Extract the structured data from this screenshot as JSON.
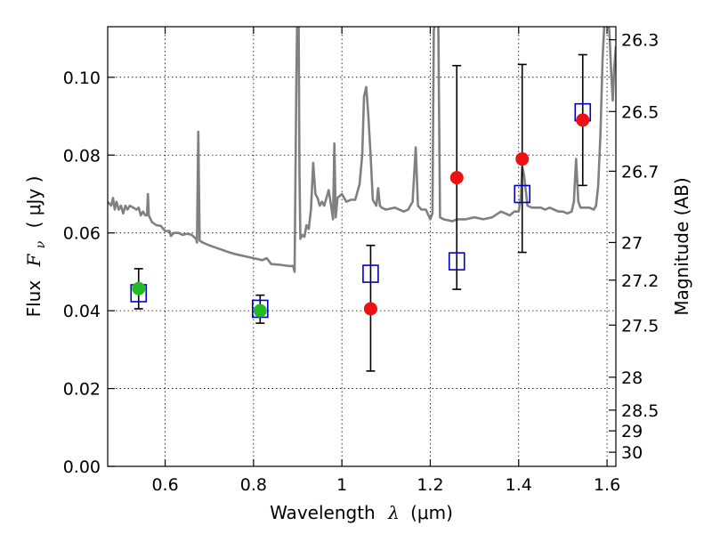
{
  "chart_data": {
    "type": "scatter",
    "xlabel_prefix": "Wavelength",
    "xlabel_symbol": "λ",
    "xlabel_unit": "(μm)",
    "ylabel_prefix": "Flux",
    "ylabel_symbol": "F",
    "ylabel_subscript": "ν",
    "ylabel_unit": "( μJy )",
    "y2label": "Magnitude (AB)",
    "xlim": [
      0.47,
      1.62
    ],
    "ylim": [
      0.0,
      0.113
    ],
    "xticks": [
      0.6,
      0.8,
      1.0,
      1.2,
      1.4,
      1.6
    ],
    "xtick_labels": [
      "0.6",
      "0.8",
      "1",
      "1.2",
      "1.4",
      "1.6"
    ],
    "yticks": [
      0.0,
      0.02,
      0.04,
      0.06,
      0.08,
      0.1
    ],
    "ytick_labels": [
      "0.00",
      "0.02",
      "0.04",
      "0.06",
      "0.08",
      "0.10"
    ],
    "y2ticks": [
      {
        "value": 26.3,
        "label": "26.3"
      },
      {
        "value": 26.5,
        "label": "26.5"
      },
      {
        "value": 26.7,
        "label": "26.7"
      },
      {
        "value": 27.0,
        "label": "27"
      },
      {
        "value": 27.2,
        "label": "27.2"
      },
      {
        "value": 27.5,
        "label": "27.5"
      },
      {
        "value": 28.0,
        "label": "28"
      },
      {
        "value": 28.5,
        "label": "28.5"
      },
      {
        "value": 29.0,
        "label": "29"
      },
      {
        "value": 30.0,
        "label": "30"
      }
    ],
    "magnitude_zero_point": 23.9,
    "grid": true,
    "colors": {
      "template": "#808080",
      "model_box": "#0000cc",
      "observed_green": "#22bb22",
      "observed_red": "#ee1111",
      "errorbar": "#000000"
    },
    "template_spectrum": [
      [
        0.47,
        0.068
      ],
      [
        0.478,
        0.067
      ],
      [
        0.482,
        0.069
      ],
      [
        0.486,
        0.066
      ],
      [
        0.49,
        0.068
      ],
      [
        0.495,
        0.066
      ],
      [
        0.5,
        0.067
      ],
      [
        0.505,
        0.065
      ],
      [
        0.51,
        0.067
      ],
      [
        0.515,
        0.066
      ],
      [
        0.52,
        0.067
      ],
      [
        0.528,
        0.0665
      ],
      [
        0.535,
        0.066
      ],
      [
        0.54,
        0.0665
      ],
      [
        0.545,
        0.0645
      ],
      [
        0.55,
        0.0655
      ],
      [
        0.555,
        0.0645
      ],
      [
        0.559,
        0.0645
      ],
      [
        0.561,
        0.07
      ],
      [
        0.563,
        0.0645
      ],
      [
        0.57,
        0.0628
      ],
      [
        0.58,
        0.062
      ],
      [
        0.59,
        0.0618
      ],
      [
        0.6,
        0.0605
      ],
      [
        0.61,
        0.0605
      ],
      [
        0.613,
        0.0592
      ],
      [
        0.62,
        0.06
      ],
      [
        0.63,
        0.06
      ],
      [
        0.64,
        0.0595
      ],
      [
        0.65,
        0.0598
      ],
      [
        0.66,
        0.0595
      ],
      [
        0.67,
        0.0585
      ],
      [
        0.672,
        0.0575
      ],
      [
        0.675,
        0.086
      ],
      [
        0.678,
        0.058
      ],
      [
        0.685,
        0.0575
      ],
      [
        0.7,
        0.0568
      ],
      [
        0.72,
        0.056
      ],
      [
        0.74,
        0.0552
      ],
      [
        0.76,
        0.0545
      ],
      [
        0.78,
        0.054
      ],
      [
        0.8,
        0.0535
      ],
      [
        0.82,
        0.053
      ],
      [
        0.83,
        0.0535
      ],
      [
        0.84,
        0.052
      ],
      [
        0.86,
        0.0518
      ],
      [
        0.88,
        0.0515
      ],
      [
        0.89,
        0.0515
      ],
      [
        0.893,
        0.05
      ],
      [
        0.897,
        0.1
      ],
      [
        0.899,
        0.116
      ],
      [
        0.902,
        0.116
      ],
      [
        0.904,
        0.075
      ],
      [
        0.906,
        0.0585
      ],
      [
        0.91,
        0.0595
      ],
      [
        0.915,
        0.059
      ],
      [
        0.92,
        0.062
      ],
      [
        0.925,
        0.061
      ],
      [
        0.93,
        0.066
      ],
      [
        0.935,
        0.078
      ],
      [
        0.94,
        0.07
      ],
      [
        0.945,
        0.069
      ],
      [
        0.95,
        0.067
      ],
      [
        0.955,
        0.068
      ],
      [
        0.96,
        0.067
      ],
      [
        0.97,
        0.071
      ],
      [
        0.975,
        0.0675
      ],
      [
        0.98,
        0.0635
      ],
      [
        0.983,
        0.083
      ],
      [
        0.986,
        0.064
      ],
      [
        0.99,
        0.069
      ],
      [
        1.0,
        0.07
      ],
      [
        1.01,
        0.068
      ],
      [
        1.02,
        0.0685
      ],
      [
        1.03,
        0.0685
      ],
      [
        1.04,
        0.0725
      ],
      [
        1.046,
        0.08
      ],
      [
        1.05,
        0.095
      ],
      [
        1.055,
        0.0975
      ],
      [
        1.06,
        0.09
      ],
      [
        1.065,
        0.08
      ],
      [
        1.07,
        0.0685
      ],
      [
        1.075,
        0.0675
      ],
      [
        1.078,
        0.067
      ],
      [
        1.082,
        0.0715
      ],
      [
        1.086,
        0.067
      ],
      [
        1.09,
        0.0665
      ],
      [
        1.1,
        0.066
      ],
      [
        1.12,
        0.0665
      ],
      [
        1.14,
        0.0655
      ],
      [
        1.15,
        0.066
      ],
      [
        1.16,
        0.068
      ],
      [
        1.167,
        0.082
      ],
      [
        1.172,
        0.067
      ],
      [
        1.18,
        0.066
      ],
      [
        1.19,
        0.066
      ],
      [
        1.2,
        0.0635
      ],
      [
        1.205,
        0.065
      ],
      [
        1.208,
        0.112
      ],
      [
        1.212,
        0.116
      ],
      [
        1.218,
        0.116
      ],
      [
        1.222,
        0.064
      ],
      [
        1.23,
        0.0635
      ],
      [
        1.25,
        0.063
      ],
      [
        1.26,
        0.0635
      ],
      [
        1.28,
        0.0635
      ],
      [
        1.3,
        0.064
      ],
      [
        1.32,
        0.0635
      ],
      [
        1.34,
        0.064
      ],
      [
        1.36,
        0.0655
      ],
      [
        1.38,
        0.0645
      ],
      [
        1.39,
        0.0655
      ],
      [
        1.4,
        0.0655
      ],
      [
        1.405,
        0.069
      ],
      [
        1.408,
        0.077
      ],
      [
        1.412,
        0.075
      ],
      [
        1.42,
        0.067
      ],
      [
        1.43,
        0.0665
      ],
      [
        1.44,
        0.0665
      ],
      [
        1.45,
        0.0665
      ],
      [
        1.46,
        0.066
      ],
      [
        1.47,
        0.0665
      ],
      [
        1.48,
        0.066
      ],
      [
        1.49,
        0.0655
      ],
      [
        1.5,
        0.0655
      ],
      [
        1.51,
        0.065
      ],
      [
        1.52,
        0.0655
      ],
      [
        1.525,
        0.068
      ],
      [
        1.53,
        0.079
      ],
      [
        1.535,
        0.068
      ],
      [
        1.54,
        0.0665
      ],
      [
        1.55,
        0.0665
      ],
      [
        1.56,
        0.0665
      ],
      [
        1.57,
        0.066
      ],
      [
        1.575,
        0.067
      ],
      [
        1.58,
        0.072
      ],
      [
        1.585,
        0.085
      ],
      [
        1.59,
        0.105
      ],
      [
        1.595,
        0.116
      ],
      [
        1.6,
        0.116
      ],
      [
        1.605,
        0.112
      ],
      [
        1.61,
        0.1
      ],
      [
        1.613,
        0.094
      ],
      [
        1.616,
        0.102
      ],
      [
        1.62,
        0.108
      ]
    ],
    "model_boxes": [
      {
        "x": 0.54,
        "y": 0.0445
      },
      {
        "x": 0.815,
        "y": 0.0405
      },
      {
        "x": 1.065,
        "y": 0.0495
      },
      {
        "x": 1.26,
        "y": 0.0527
      },
      {
        "x": 1.408,
        "y": 0.07
      },
      {
        "x": 1.545,
        "y": 0.091
      }
    ],
    "observed_points": [
      {
        "x": 0.54,
        "y": 0.0457,
        "yerr_low": 0.0405,
        "yerr_high": 0.0508,
        "color": "green"
      },
      {
        "x": 0.815,
        "y": 0.04,
        "yerr_low": 0.0368,
        "yerr_high": 0.044,
        "color": "green"
      },
      {
        "x": 1.065,
        "y": 0.0405,
        "yerr_low": 0.0245,
        "yerr_high": 0.0568,
        "color": "red"
      },
      {
        "x": 1.26,
        "y": 0.0742,
        "yerr_low": 0.0455,
        "yerr_high": 0.103,
        "color": "red"
      },
      {
        "x": 1.408,
        "y": 0.079,
        "yerr_low": 0.055,
        "yerr_high": 0.1033,
        "color": "red"
      },
      {
        "x": 1.545,
        "y": 0.089,
        "yerr_low": 0.0722,
        "yerr_high": 0.1058,
        "color": "red"
      }
    ]
  }
}
